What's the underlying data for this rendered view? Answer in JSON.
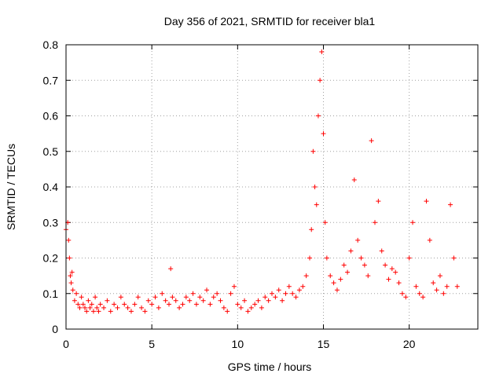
{
  "chart_data": {
    "type": "scatter",
    "title": "Day 356 of 2021, SRMTID for receiver bla1",
    "xlabel": "GPS time / hours",
    "ylabel": "SRMTID / TECUs",
    "xlim": [
      0,
      24
    ],
    "ylim": [
      0,
      0.8
    ],
    "xticks": [
      0,
      5,
      10,
      15,
      20
    ],
    "xtick_labels": [
      "0",
      "5",
      "10",
      "15",
      "20"
    ],
    "yticks": [
      0,
      0.1,
      0.2,
      0.3,
      0.4,
      0.5,
      0.6,
      0.7,
      0.8
    ],
    "ytick_labels": [
      "0",
      "0.1",
      "0.2",
      "0.3",
      "0.4",
      "0.5",
      "0.6",
      "0.7",
      "0.8"
    ],
    "grid": true,
    "marker": "+",
    "series": [
      {
        "name": "SRMTID",
        "color": "#ff0000",
        "x": [
          0.0,
          0.1,
          0.15,
          0.2,
          0.25,
          0.3,
          0.35,
          0.4,
          0.5,
          0.6,
          0.7,
          0.8,
          0.9,
          1.0,
          1.1,
          1.2,
          1.3,
          1.4,
          1.5,
          1.6,
          1.7,
          1.8,
          1.9,
          2.0,
          2.2,
          2.4,
          2.6,
          2.8,
          3.0,
          3.2,
          3.4,
          3.6,
          3.8,
          4.0,
          4.2,
          4.4,
          4.6,
          4.8,
          5.0,
          5.2,
          5.4,
          5.6,
          5.8,
          6.0,
          6.1,
          6.2,
          6.4,
          6.6,
          6.8,
          7.0,
          7.2,
          7.4,
          7.6,
          7.8,
          8.0,
          8.2,
          8.4,
          8.6,
          8.8,
          9.0,
          9.2,
          9.4,
          9.6,
          9.8,
          10.0,
          10.2,
          10.4,
          10.6,
          10.8,
          11.0,
          11.2,
          11.4,
          11.6,
          11.8,
          12.0,
          12.2,
          12.4,
          12.6,
          12.8,
          13.0,
          13.2,
          13.4,
          13.6,
          13.8,
          14.0,
          14.2,
          14.3,
          14.4,
          14.5,
          14.6,
          14.7,
          14.8,
          14.9,
          15.0,
          15.1,
          15.2,
          15.4,
          15.6,
          15.8,
          16.0,
          16.2,
          16.4,
          16.6,
          16.8,
          17.0,
          17.2,
          17.4,
          17.6,
          17.8,
          18.0,
          18.2,
          18.4,
          18.6,
          18.8,
          19.0,
          19.2,
          19.4,
          19.6,
          19.8,
          20.0,
          20.2,
          20.4,
          20.6,
          20.8,
          21.0,
          21.2,
          21.4,
          21.6,
          21.8,
          22.0,
          22.2,
          22.4,
          22.6,
          22.8
        ],
        "y": [
          0.28,
          0.3,
          0.25,
          0.2,
          0.15,
          0.13,
          0.16,
          0.11,
          0.08,
          0.1,
          0.07,
          0.06,
          0.09,
          0.07,
          0.06,
          0.05,
          0.08,
          0.06,
          0.07,
          0.05,
          0.09,
          0.06,
          0.05,
          0.07,
          0.06,
          0.08,
          0.05,
          0.07,
          0.06,
          0.09,
          0.07,
          0.06,
          0.05,
          0.07,
          0.09,
          0.06,
          0.05,
          0.08,
          0.07,
          0.09,
          0.06,
          0.1,
          0.08,
          0.07,
          0.17,
          0.09,
          0.08,
          0.06,
          0.07,
          0.09,
          0.08,
          0.1,
          0.07,
          0.09,
          0.08,
          0.11,
          0.07,
          0.09,
          0.1,
          0.08,
          0.06,
          0.05,
          0.1,
          0.12,
          0.07,
          0.06,
          0.08,
          0.05,
          0.06,
          0.07,
          0.08,
          0.06,
          0.09,
          0.08,
          0.1,
          0.09,
          0.11,
          0.08,
          0.1,
          0.12,
          0.1,
          0.09,
          0.11,
          0.12,
          0.15,
          0.2,
          0.28,
          0.5,
          0.4,
          0.35,
          0.6,
          0.7,
          0.78,
          0.55,
          0.3,
          0.2,
          0.15,
          0.13,
          0.11,
          0.14,
          0.18,
          0.16,
          0.22,
          0.42,
          0.25,
          0.2,
          0.18,
          0.15,
          0.53,
          0.3,
          0.36,
          0.22,
          0.18,
          0.14,
          0.17,
          0.16,
          0.13,
          0.1,
          0.09,
          0.2,
          0.3,
          0.12,
          0.1,
          0.09,
          0.36,
          0.25,
          0.13,
          0.11,
          0.15,
          0.1,
          0.12,
          0.35,
          0.2,
          0.12
        ]
      }
    ]
  }
}
